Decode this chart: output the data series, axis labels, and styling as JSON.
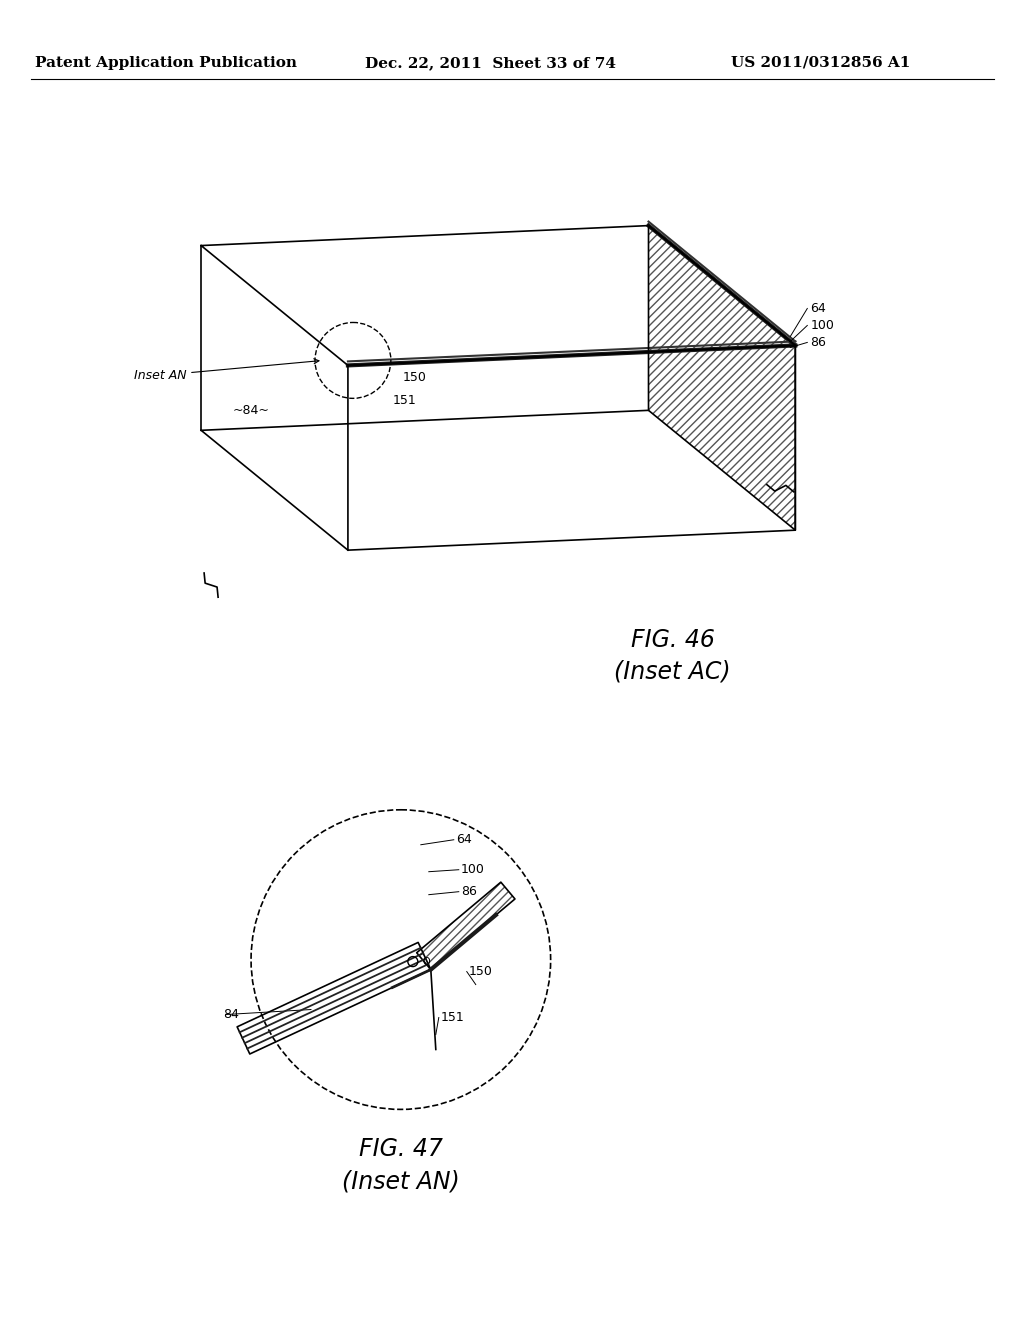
{
  "bg_color": "#ffffff",
  "header_left": "Patent Application Publication",
  "header_mid": "Dec. 22, 2011  Sheet 33 of 74",
  "header_right": "US 2011/0312856 A1",
  "fig46_title": "FIG. 46",
  "fig46_sub": "(Inset AC)",
  "fig47_title": "FIG. 47",
  "fig47_sub": "(Inset AN)",
  "line_color": "#000000"
}
